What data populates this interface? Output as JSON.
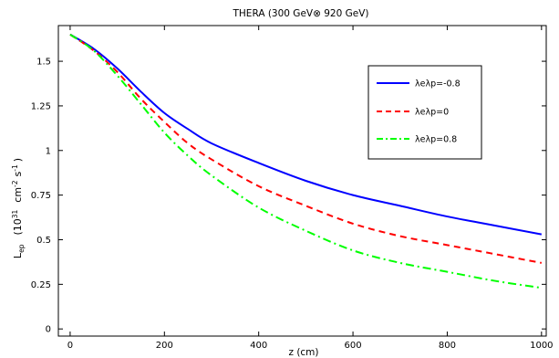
{
  "chart_data": {
    "type": "line",
    "title": "THERA (300 GeV⊗ 920 GeV)",
    "xlabel": "z (cm)",
    "ylabel": "L_ep (10^31 cm^-2 s^-1)",
    "ylabel_parts": {
      "L": "L",
      "sub": "ep",
      "open": "(10",
      "exp1": "31",
      "cm": "cm",
      "exp2": "-2",
      "s": "s",
      "exp3": "-1",
      "close": ")"
    },
    "xlim": [
      -25,
      1010
    ],
    "ylim": [
      -0.04,
      1.7
    ],
    "x_ticks": [
      0,
      200,
      400,
      600,
      800,
      1000
    ],
    "x_tick_labels": [
      "0",
      "200",
      "400",
      "600",
      "800",
      "1000"
    ],
    "y_ticks": [
      0,
      0.25,
      0.5,
      0.75,
      1,
      1.25,
      1.5
    ],
    "y_tick_labels": [
      "0",
      "0.25",
      "0.5",
      "0.75",
      "1",
      "1.25",
      "1.5"
    ],
    "grid": false,
    "legend_position": "upper-right",
    "x": [
      0,
      50,
      100,
      150,
      200,
      250,
      300,
      400,
      500,
      600,
      700,
      800,
      900,
      1000
    ],
    "series": [
      {
        "name": "λeλp=-0.8",
        "color": "#0000ff",
        "dash": "solid",
        "values": [
          1.65,
          1.57,
          1.46,
          1.33,
          1.21,
          1.12,
          1.04,
          0.93,
          0.83,
          0.75,
          0.69,
          0.63,
          0.58,
          0.53
        ]
      },
      {
        "name": "λeλp=0",
        "color": "#ff0000",
        "dash": "dashed",
        "values": [
          1.65,
          1.56,
          1.44,
          1.29,
          1.16,
          1.04,
          0.95,
          0.8,
          0.69,
          0.59,
          0.52,
          0.47,
          0.42,
          0.37
        ]
      },
      {
        "name": "λeλp=0.8",
        "color": "#00ff00",
        "dash": "dashdot",
        "values": [
          1.65,
          1.56,
          1.42,
          1.26,
          1.1,
          0.97,
          0.86,
          0.68,
          0.55,
          0.44,
          0.37,
          0.32,
          0.27,
          0.23
        ]
      }
    ]
  }
}
